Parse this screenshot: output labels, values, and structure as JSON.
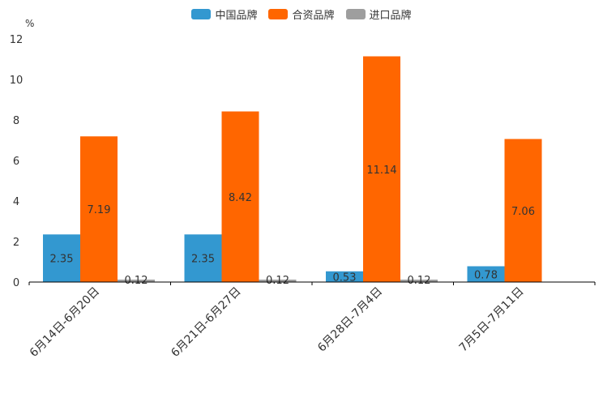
{
  "chart_data": {
    "type": "bar",
    "unit": "%",
    "categories": [
      "6月14日-6月20日",
      "6月21日-6月27日",
      "6月28日-7月4日",
      "7月5日-7月11日"
    ],
    "series": [
      {
        "name": "中国品牌",
        "color": "#3398d0",
        "values": [
          2.35,
          2.35,
          0.53,
          0.78
        ],
        "labels": [
          "2.35",
          "2.35",
          "0.53",
          "0.78"
        ]
      },
      {
        "name": "合资品牌",
        "color": "#ff6600",
        "values": [
          7.19,
          8.42,
          11.14,
          7.06
        ],
        "labels": [
          "7.19",
          "8.42",
          "11.14",
          "7.06"
        ]
      },
      {
        "name": "进口品牌",
        "color": "#9e9e9e",
        "values": [
          0.12,
          0.12,
          0.12,
          null
        ],
        "labels": [
          "0.12",
          "0.12",
          "0.12",
          null
        ]
      }
    ],
    "ylim": [
      0,
      12
    ],
    "yticks": [
      0,
      2,
      4,
      6,
      8,
      10,
      12
    ],
    "legend_position": "top-center"
  }
}
